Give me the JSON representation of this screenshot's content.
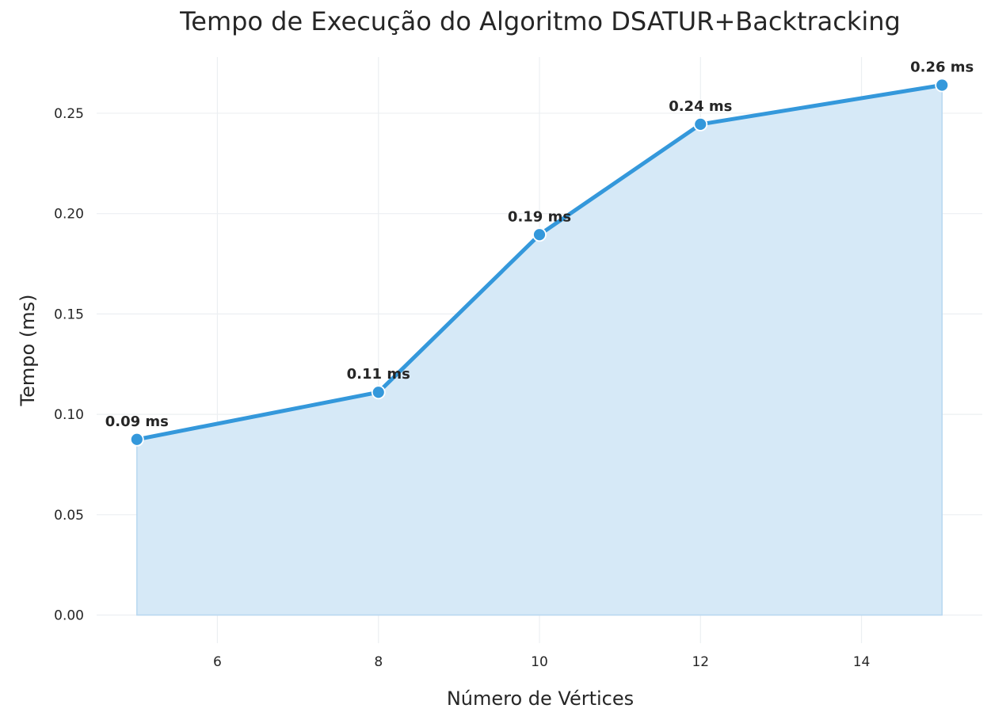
{
  "chart_data": {
    "type": "area",
    "title": "Tempo de Execução do Algoritmo DSATUR+Backtracking",
    "xlabel": "Número de Vértices",
    "ylabel": "Tempo (ms)",
    "x": [
      5,
      8,
      10,
      12,
      15
    ],
    "y": [
      0.0875,
      0.111,
      0.1895,
      0.2445,
      0.264
    ],
    "data_labels": [
      "0.09 ms",
      "0.11 ms",
      "0.19 ms",
      "0.24 ms",
      "0.26 ms"
    ],
    "xlim": [
      4.5,
      15.5
    ],
    "ylim": [
      -0.014,
      0.278
    ],
    "xticks": [
      6,
      8,
      10,
      12,
      14
    ],
    "xtick_labels": [
      "6",
      "8",
      "10",
      "12",
      "14"
    ],
    "yticks": [
      0.0,
      0.05,
      0.1,
      0.15,
      0.2,
      0.25
    ],
    "ytick_labels": [
      "0.00",
      "0.05",
      "0.10",
      "0.15",
      "0.20",
      "0.25"
    ],
    "grid": true,
    "legend": "none",
    "colors": {
      "line": "#3498db",
      "fill": "#d6e9f7",
      "marker_edge": "#ffffff",
      "grid": "#eceff2",
      "text": "#262626"
    }
  }
}
